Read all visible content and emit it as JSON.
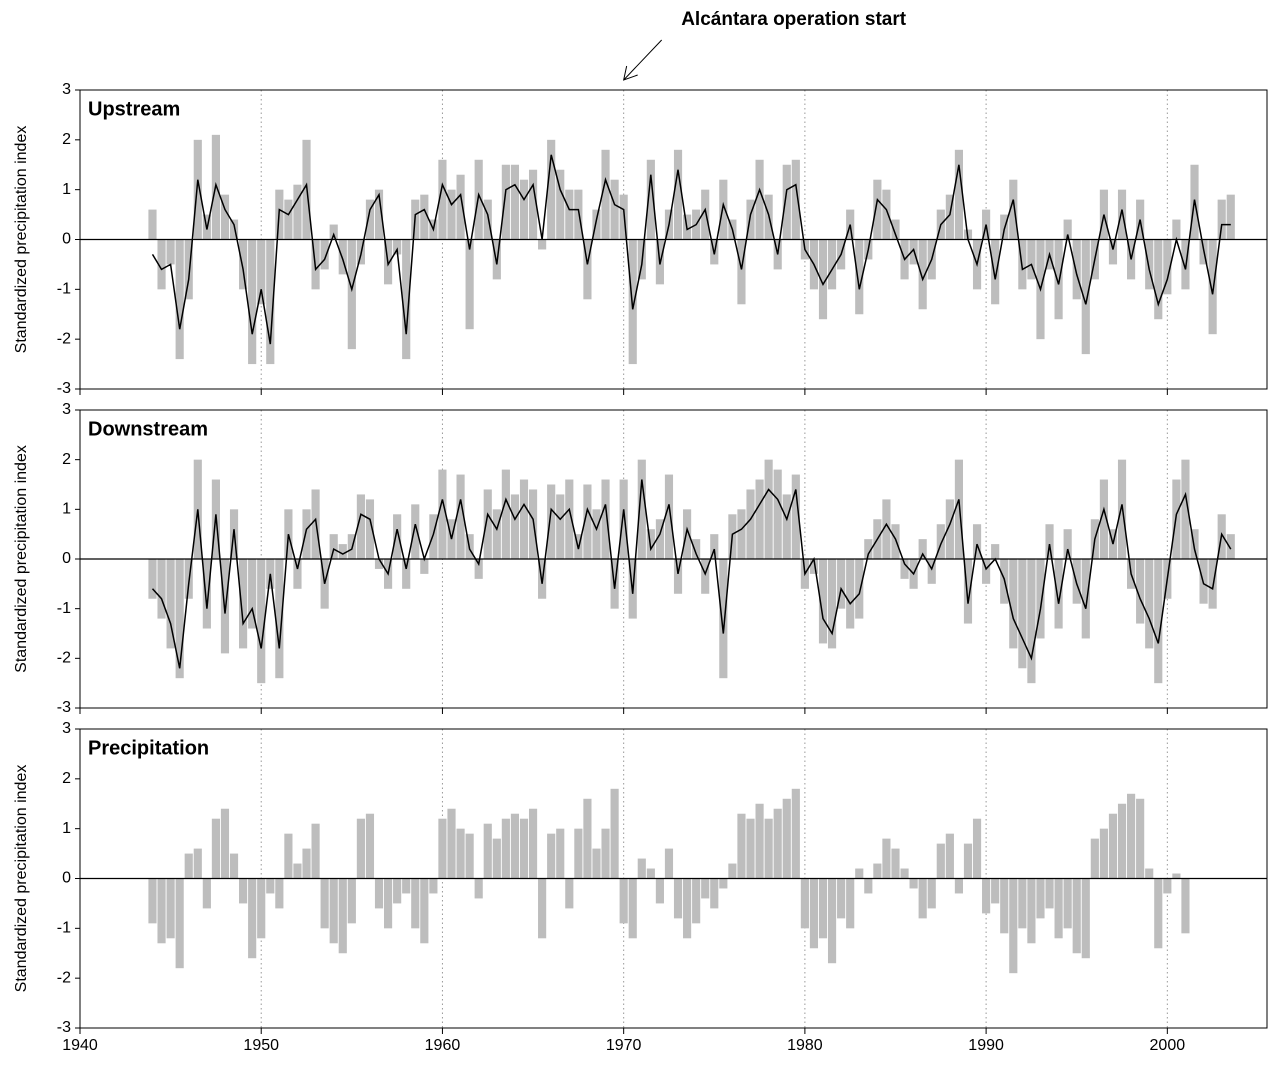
{
  "chart_data": [
    {
      "type": "combo",
      "title": "Upstream",
      "y_label": "Standardized precipitation index",
      "annotation": {
        "text": "Alcántara operation start",
        "x": 1970
      },
      "x": [
        1944,
        1944.5,
        1945,
        1945.5,
        1946,
        1946.5,
        1947,
        1947.5,
        1948,
        1948.5,
        1949,
        1949.5,
        1950,
        1950.5,
        1951,
        1951.5,
        1952,
        1952.5,
        1953,
        1953.5,
        1954,
        1954.5,
        1955,
        1955.5,
        1956,
        1956.5,
        1957,
        1957.5,
        1958,
        1958.5,
        1959,
        1959.5,
        1960,
        1960.5,
        1961,
        1961.5,
        1962,
        1962.5,
        1963,
        1963.5,
        1964,
        1964.5,
        1965,
        1965.5,
        1966,
        1966.5,
        1967,
        1967.5,
        1968,
        1968.5,
        1969,
        1969.5,
        1970,
        1970.5,
        1971,
        1971.5,
        1972,
        1972.5,
        1973,
        1973.5,
        1974,
        1974.5,
        1975,
        1975.5,
        1976,
        1976.5,
        1977,
        1977.5,
        1978,
        1978.5,
        1979,
        1979.5,
        1980,
        1980.5,
        1981,
        1981.5,
        1982,
        1982.5,
        1983,
        1983.5,
        1984,
        1984.5,
        1985,
        1985.5,
        1986,
        1986.5,
        1987,
        1987.5,
        1988,
        1988.5,
        1989,
        1989.5,
        1990,
        1990.5,
        1991,
        1991.5,
        1992,
        1992.5,
        1993,
        1993.5,
        1994,
        1994.5,
        1995,
        1995.5,
        1996,
        1996.5,
        1997,
        1997.5,
        1998,
        1998.5,
        1999,
        1999.5,
        2000,
        2000.5,
        2001,
        2001.5,
        2002,
        2002.5,
        2003,
        2003.5
      ],
      "series": [
        {
          "type": "bar",
          "color": "#bdbdbd",
          "values": [
            0.6,
            -1.0,
            -0.5,
            -2.4,
            -1.2,
            2.0,
            0.5,
            2.1,
            0.9,
            0.4,
            -1.0,
            -2.5,
            -1.3,
            -2.5,
            1.0,
            0.8,
            1.1,
            2.0,
            -1.0,
            -0.6,
            0.3,
            -0.7,
            -2.2,
            -0.5,
            0.8,
            1.0,
            -0.9,
            -0.3,
            -2.4,
            0.8,
            0.9,
            0.4,
            1.6,
            1.0,
            1.3,
            -1.8,
            1.6,
            0.8,
            -0.8,
            1.5,
            1.5,
            1.2,
            1.4,
            -0.2,
            2.0,
            1.4,
            1.0,
            1.0,
            -1.2,
            0.6,
            1.8,
            1.2,
            0.9,
            -2.5,
            -0.8,
            1.6,
            -0.9,
            0.6,
            1.8,
            0.5,
            0.6,
            1.0,
            -0.5,
            1.2,
            0.4,
            -1.3,
            0.8,
            1.6,
            0.9,
            -0.6,
            1.5,
            1.6,
            -0.4,
            -1.0,
            -1.6,
            -1.0,
            -0.6,
            0.6,
            -1.5,
            -0.4,
            1.2,
            1.0,
            0.4,
            -0.8,
            -0.5,
            -1.4,
            -0.8,
            0.6,
            0.9,
            1.8,
            0.2,
            -1.0,
            0.6,
            -1.3,
            0.5,
            1.2,
            -1.0,
            -0.8,
            -2.0,
            -0.6,
            -1.6,
            0.4,
            -1.2,
            -2.3,
            -0.8,
            1.0,
            -0.5,
            1.0,
            -0.8,
            0.8,
            -1.0,
            -1.6,
            -1.1,
            0.4,
            -1.0,
            1.5,
            -0.5,
            -1.9,
            0.8,
            0.9
          ]
        },
        {
          "type": "line",
          "color": "#000000",
          "values": [
            -0.3,
            -0.6,
            -0.5,
            -1.8,
            -0.8,
            1.2,
            0.2,
            1.1,
            0.6,
            0.3,
            -0.6,
            -1.9,
            -1.0,
            -2.1,
            0.6,
            0.5,
            0.8,
            1.1,
            -0.6,
            -0.4,
            0.1,
            -0.4,
            -1.0,
            -0.3,
            0.6,
            0.9,
            -0.5,
            -0.2,
            -1.9,
            0.5,
            0.6,
            0.2,
            1.1,
            0.7,
            0.9,
            -0.2,
            0.9,
            0.5,
            -0.5,
            1.0,
            1.1,
            0.8,
            1.1,
            0.0,
            1.7,
            1.0,
            0.6,
            0.6,
            -0.5,
            0.4,
            1.2,
            0.7,
            0.6,
            -1.4,
            -0.5,
            1.3,
            -0.5,
            0.3,
            1.4,
            0.2,
            0.3,
            0.6,
            -0.3,
            0.7,
            0.2,
            -0.6,
            0.5,
            1.0,
            0.5,
            -0.3,
            1.0,
            1.1,
            -0.2,
            -0.5,
            -0.9,
            -0.6,
            -0.3,
            0.3,
            -1.0,
            -0.2,
            0.8,
            0.6,
            0.1,
            -0.4,
            -0.2,
            -0.8,
            -0.4,
            0.3,
            0.5,
            1.5,
            0.0,
            -0.5,
            0.3,
            -0.8,
            0.2,
            0.8,
            -0.6,
            -0.5,
            -1.0,
            -0.3,
            -0.9,
            0.1,
            -0.7,
            -1.3,
            -0.4,
            0.5,
            -0.2,
            0.6,
            -0.4,
            0.4,
            -0.6,
            -1.3,
            -0.8,
            0.0,
            -0.6,
            0.8,
            -0.2,
            -1.1,
            0.3,
            0.3
          ]
        }
      ],
      "xlim": [
        1940,
        2005.5
      ],
      "xticks": [
        1940,
        1950,
        1960,
        1970,
        1980,
        1990,
        2000
      ],
      "ylim": [
        -3,
        3
      ],
      "yticks": [
        -3,
        -2,
        -1,
        0,
        1,
        2,
        3
      ],
      "x_grid": true
    },
    {
      "type": "combo",
      "title": "Downstream",
      "y_label": "Standardized precipitation index",
      "x": [
        1944,
        1944.5,
        1945,
        1945.5,
        1946,
        1946.5,
        1947,
        1947.5,
        1948,
        1948.5,
        1949,
        1949.5,
        1950,
        1950.5,
        1951,
        1951.5,
        1952,
        1952.5,
        1953,
        1953.5,
        1954,
        1954.5,
        1955,
        1955.5,
        1956,
        1956.5,
        1957,
        1957.5,
        1958,
        1958.5,
        1959,
        1959.5,
        1960,
        1960.5,
        1961,
        1961.5,
        1962,
        1962.5,
        1963,
        1963.5,
        1964,
        1964.5,
        1965,
        1965.5,
        1966,
        1966.5,
        1967,
        1967.5,
        1968,
        1968.5,
        1969,
        1969.5,
        1970,
        1970.5,
        1971,
        1971.5,
        1972,
        1972.5,
        1973,
        1973.5,
        1974,
        1974.5,
        1975,
        1975.5,
        1976,
        1976.5,
        1977,
        1977.5,
        1978,
        1978.5,
        1979,
        1979.5,
        1980,
        1980.5,
        1981,
        1981.5,
        1982,
        1982.5,
        1983,
        1983.5,
        1984,
        1984.5,
        1985,
        1985.5,
        1986,
        1986.5,
        1987,
        1987.5,
        1988,
        1988.5,
        1989,
        1989.5,
        1990,
        1990.5,
        1991,
        1991.5,
        1992,
        1992.5,
        1993,
        1993.5,
        1994,
        1994.5,
        1995,
        1995.5,
        1996,
        1996.5,
        1997,
        1997.5,
        1998,
        1998.5,
        1999,
        1999.5,
        2000,
        2000.5,
        2001,
        2001.5,
        2002,
        2002.5,
        2003,
        2003.5
      ],
      "series": [
        {
          "type": "bar",
          "color": "#bdbdbd",
          "values": [
            -0.8,
            -1.2,
            -1.8,
            -2.4,
            -0.8,
            2.0,
            -1.4,
            1.6,
            -1.9,
            1.0,
            -1.8,
            -1.4,
            -2.5,
            -0.6,
            -2.4,
            1.0,
            -0.6,
            1.0,
            1.4,
            -1.0,
            0.5,
            0.3,
            0.5,
            1.3,
            1.2,
            -0.2,
            -0.6,
            0.9,
            -0.6,
            1.1,
            -0.3,
            0.9,
            1.8,
            0.8,
            1.7,
            0.5,
            -0.4,
            1.4,
            1.0,
            1.8,
            1.3,
            1.6,
            1.4,
            -0.8,
            1.5,
            1.3,
            1.6,
            0.5,
            1.5,
            1.0,
            1.6,
            -1.0,
            1.6,
            -1.2,
            2.0,
            0.6,
            0.8,
            1.7,
            -0.7,
            1.0,
            0.4,
            -0.7,
            0.5,
            -2.4,
            0.9,
            1.0,
            1.4,
            1.6,
            2.0,
            1.8,
            1.3,
            1.7,
            -0.6,
            -0.3,
            -1.7,
            -1.8,
            -1.0,
            -1.4,
            -1.2,
            0.4,
            0.8,
            1.2,
            0.7,
            -0.4,
            -0.6,
            0.4,
            -0.5,
            0.7,
            1.2,
            2.0,
            -1.3,
            0.7,
            -0.5,
            0.3,
            -0.9,
            -1.8,
            -2.2,
            -2.5,
            -1.6,
            0.7,
            -1.4,
            0.6,
            -0.9,
            -1.6,
            0.8,
            1.6,
            0.6,
            2.0,
            -0.6,
            -1.3,
            -1.8,
            -2.5,
            -0.8,
            1.6,
            2.0,
            0.6,
            -0.9,
            -1.0,
            0.9,
            0.5
          ]
        },
        {
          "type": "line",
          "color": "#000000",
          "values": [
            -0.6,
            -0.8,
            -1.3,
            -2.2,
            -0.5,
            1.0,
            -1.0,
            0.9,
            -1.1,
            0.6,
            -1.3,
            -1.0,
            -1.8,
            -0.3,
            -1.8,
            0.5,
            -0.2,
            0.6,
            0.8,
            -0.5,
            0.2,
            0.1,
            0.2,
            0.9,
            0.8,
            0.0,
            -0.3,
            0.6,
            -0.2,
            0.7,
            0.0,
            0.5,
            1.2,
            0.4,
            1.2,
            0.2,
            -0.1,
            0.9,
            0.6,
            1.2,
            0.8,
            1.1,
            0.8,
            -0.5,
            1.0,
            0.8,
            1.0,
            0.2,
            1.0,
            0.6,
            1.1,
            -0.6,
            1.0,
            -0.7,
            1.6,
            0.2,
            0.5,
            1.1,
            -0.3,
            0.6,
            0.1,
            -0.3,
            0.2,
            -1.5,
            0.5,
            0.6,
            0.8,
            1.1,
            1.4,
            1.2,
            0.8,
            1.4,
            -0.3,
            0.0,
            -1.2,
            -1.5,
            -0.6,
            -0.9,
            -0.7,
            0.1,
            0.4,
            0.7,
            0.4,
            -0.1,
            -0.3,
            0.1,
            -0.2,
            0.3,
            0.7,
            1.2,
            -0.9,
            0.3,
            -0.2,
            0.0,
            -0.4,
            -1.2,
            -1.6,
            -2.0,
            -1.0,
            0.3,
            -0.9,
            0.2,
            -0.5,
            -1.0,
            0.4,
            1.0,
            0.3,
            1.1,
            -0.3,
            -0.8,
            -1.2,
            -1.7,
            -0.4,
            0.9,
            1.3,
            0.2,
            -0.5,
            -0.6,
            0.5,
            0.2
          ]
        }
      ],
      "xlim": [
        1940,
        2005.5
      ],
      "xticks": [
        1940,
        1950,
        1960,
        1970,
        1980,
        1990,
        2000
      ],
      "ylim": [
        -3,
        3
      ],
      "yticks": [
        -3,
        -2,
        -1,
        0,
        1,
        2,
        3
      ],
      "x_grid": true
    },
    {
      "type": "bar",
      "title": "Precipitation",
      "y_label": "Standardized precipitation index",
      "x": [
        1944,
        1944.5,
        1945,
        1945.5,
        1946,
        1946.5,
        1947,
        1947.5,
        1948,
        1948.5,
        1949,
        1949.5,
        1950,
        1950.5,
        1951,
        1951.5,
        1952,
        1952.5,
        1953,
        1953.5,
        1954,
        1954.5,
        1955,
        1955.5,
        1956,
        1956.5,
        1957,
        1957.5,
        1958,
        1958.5,
        1959,
        1959.5,
        1960,
        1960.5,
        1961,
        1961.5,
        1962,
        1962.5,
        1963,
        1963.5,
        1964,
        1964.5,
        1965,
        1965.5,
        1966,
        1966.5,
        1967,
        1967.5,
        1968,
        1968.5,
        1969,
        1969.5,
        1970,
        1970.5,
        1971,
        1971.5,
        1972,
        1972.5,
        1973,
        1973.5,
        1974,
        1974.5,
        1975,
        1975.5,
        1976,
        1976.5,
        1977,
        1977.5,
        1978,
        1978.5,
        1979,
        1979.5,
        1980,
        1980.5,
        1981,
        1981.5,
        1982,
        1982.5,
        1983,
        1983.5,
        1984,
        1984.5,
        1985,
        1985.5,
        1986,
        1986.5,
        1987,
        1987.5,
        1988,
        1988.5,
        1989,
        1989.5,
        1990,
        1990.5,
        1991,
        1991.5,
        1992,
        1992.5,
        1993,
        1993.5,
        1994,
        1994.5,
        1995,
        1995.5,
        1996,
        1996.5,
        1997,
        1997.5,
        1998,
        1998.5,
        1999,
        1999.5,
        2000,
        2000.5,
        2001,
        2001.5,
        2002,
        2002.5,
        2003,
        2003.5
      ],
      "series": [
        {
          "type": "bar",
          "color": "#bdbdbd",
          "values": [
            -0.9,
            -1.3,
            -1.2,
            -1.8,
            0.5,
            0.6,
            -0.6,
            1.2,
            1.4,
            0.5,
            -0.5,
            -1.6,
            -1.2,
            -0.3,
            -0.6,
            0.9,
            0.3,
            0.6,
            1.1,
            -1.0,
            -1.3,
            -1.5,
            -0.9,
            1.2,
            1.3,
            -0.6,
            -1.0,
            -0.5,
            -0.3,
            -1.0,
            -1.3,
            -0.3,
            1.2,
            1.4,
            1.0,
            0.9,
            -0.4,
            1.1,
            0.8,
            1.2,
            1.3,
            1.2,
            1.4,
            -1.2,
            0.9,
            1.0,
            -0.6,
            1.0,
            1.6,
            0.6,
            1.0,
            1.8,
            -0.9,
            -1.2,
            0.4,
            0.2,
            -0.5,
            0.6,
            -0.8,
            -1.2,
            -0.9,
            -0.4,
            -0.6,
            -0.2,
            0.3,
            1.3,
            1.2,
            1.5,
            1.2,
            1.4,
            1.6,
            1.8,
            -1.0,
            -1.4,
            -1.2,
            -1.7,
            -0.8,
            -1.0,
            0.2,
            -0.3,
            0.3,
            0.8,
            0.6,
            0.2,
            -0.2,
            -0.8,
            -0.6,
            0.7,
            0.9,
            -0.3,
            0.7,
            1.2,
            -0.7,
            -0.5,
            -1.1,
            -1.9,
            -1.0,
            -1.3,
            -0.8,
            -0.6,
            -1.2,
            -1.0,
            -1.5,
            -1.6,
            0.8,
            1.0,
            1.3,
            1.5,
            1.7,
            1.6,
            0.2,
            -1.4,
            -0.3,
            0.1,
            -1.1,
            null,
            null,
            null,
            null,
            null
          ]
        }
      ],
      "xlim": [
        1940,
        2005.5
      ],
      "xticks": [
        1940,
        1950,
        1960,
        1970,
        1980,
        1990,
        2000
      ],
      "ylim": [
        -3,
        3
      ],
      "yticks": [
        -3,
        -2,
        -1,
        0,
        1,
        2,
        3
      ],
      "x_grid": true
    }
  ]
}
